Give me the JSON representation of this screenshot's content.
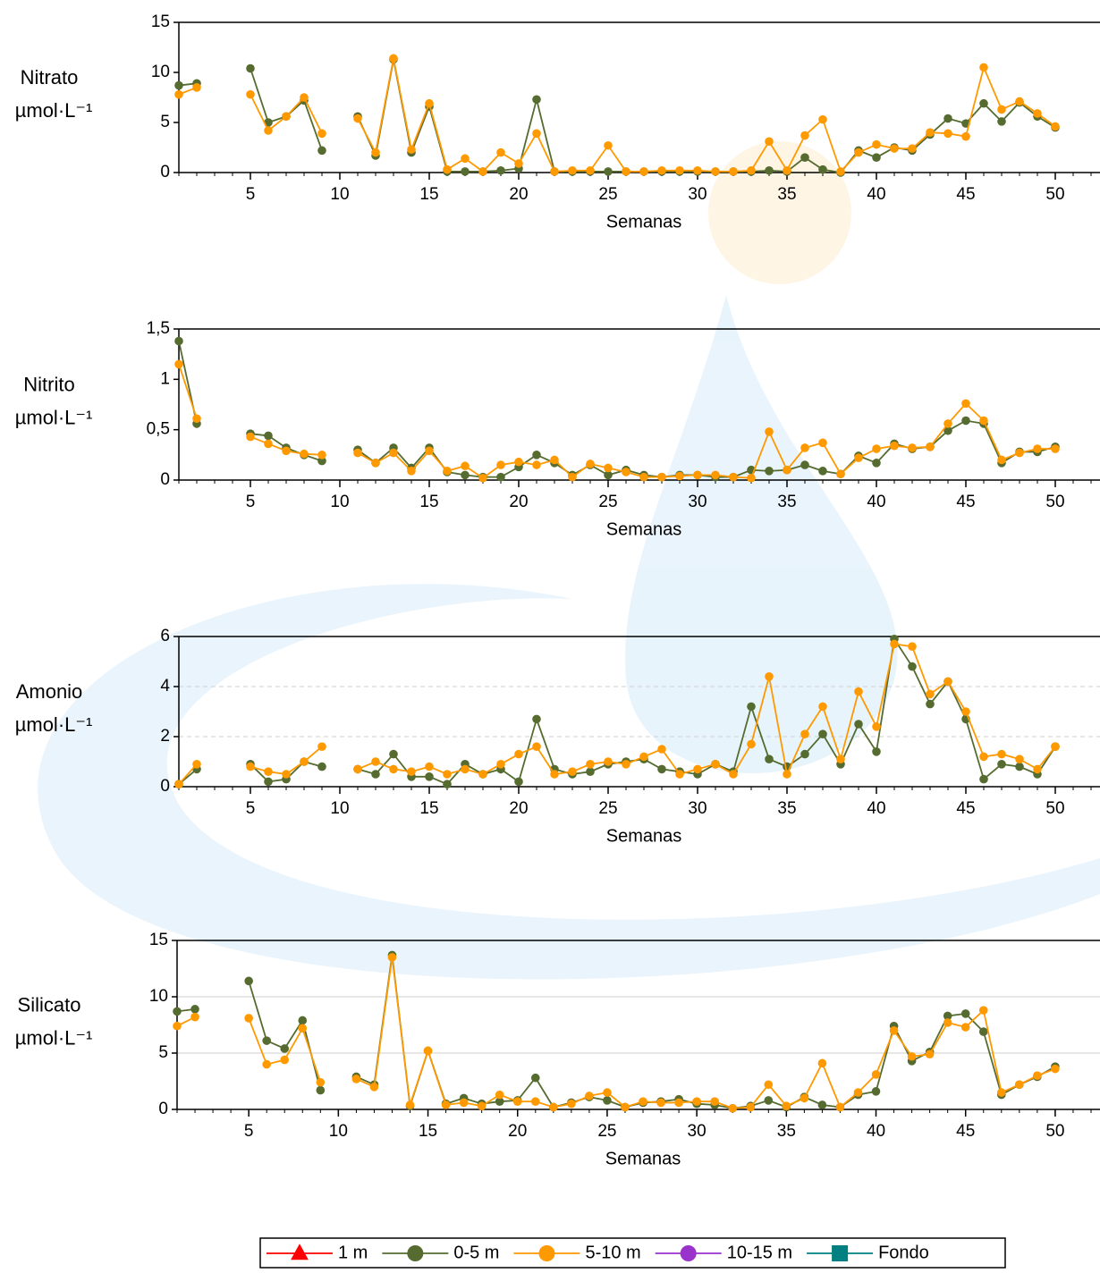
{
  "legend": [
    {
      "name": "1 m",
      "color": "#ff0000",
      "marker": "triangle"
    },
    {
      "name": "0-5 m",
      "color": "#556b2f",
      "marker": "circle"
    },
    {
      "name": "5-10 m",
      "color": "#ff9900",
      "marker": "circle"
    },
    {
      "name": "10-15 m",
      "color": "#9933cc",
      "marker": "circle"
    },
    {
      "name": "Fondo",
      "color": "#008080",
      "marker": "square"
    }
  ],
  "chart_data": [
    {
      "type": "line",
      "ylabel": "Nitrato",
      "unit": "µmol·L⁻¹",
      "xlabel": "Semanas",
      "grid": false,
      "x": [
        1,
        2,
        3,
        4,
        5,
        6,
        7,
        8,
        9,
        10,
        11,
        12,
        13,
        14,
        15,
        16,
        17,
        18,
        19,
        20,
        21,
        22,
        23,
        24,
        25,
        26,
        27,
        28,
        29,
        30,
        31,
        32,
        33,
        34,
        35,
        36,
        37,
        38,
        39,
        40,
        41,
        42,
        43,
        44,
        45,
        46,
        47,
        48,
        49,
        50
      ],
      "xlim": [
        1,
        52.5
      ],
      "xticks": [
        5,
        10,
        15,
        20,
        25,
        30,
        35,
        40,
        45,
        50
      ],
      "ylim": [
        0,
        15
      ],
      "yticks": [
        0,
        5,
        10,
        15
      ],
      "series": [
        {
          "entry": 1,
          "values": [
            8.7,
            8.9,
            null,
            null,
            10.4,
            5.0,
            5.6,
            7.2,
            2.2,
            null,
            5.6,
            1.7,
            11.3,
            2.0,
            6.6,
            0.1,
            0.1,
            0.1,
            0.2,
            0.4,
            7.3,
            0.1,
            0.1,
            0.1,
            0.1,
            0.1,
            0.1,
            0.1,
            0.1,
            0.1,
            0.1,
            0.1,
            0.1,
            0.2,
            0.1,
            1.5,
            0.3,
            0,
            2.2,
            1.5,
            2.5,
            2.2,
            3.8,
            5.4,
            4.9,
            6.9,
            5.1,
            7.0,
            5.6,
            4.5
          ]
        },
        {
          "entry": 2,
          "values": [
            7.8,
            8.5,
            null,
            null,
            7.8,
            4.2,
            5.6,
            7.5,
            3.9,
            null,
            5.4,
            2.0,
            11.4,
            2.3,
            6.9,
            0.3,
            1.4,
            0.1,
            2.0,
            0.9,
            3.9,
            0.1,
            0.2,
            0.2,
            2.7,
            0.1,
            0.1,
            0.2,
            0.2,
            0.2,
            0.1,
            0.1,
            0.2,
            3.1,
            0.2,
            3.7,
            5.3,
            0.1,
            2.0,
            2.8,
            2.4,
            2.4,
            4.0,
            3.9,
            3.6,
            10.5,
            6.3,
            7.1,
            5.9,
            4.6
          ]
        }
      ]
    },
    {
      "type": "line",
      "ylabel": "Nitrito",
      "unit": "µmol·L⁻¹",
      "xlabel": "Semanas",
      "grid": false,
      "x": [
        1,
        2,
        3,
        4,
        5,
        6,
        7,
        8,
        9,
        10,
        11,
        12,
        13,
        14,
        15,
        16,
        17,
        18,
        19,
        20,
        21,
        22,
        23,
        24,
        25,
        26,
        27,
        28,
        29,
        30,
        31,
        32,
        33,
        34,
        35,
        36,
        37,
        38,
        39,
        40,
        41,
        42,
        43,
        44,
        45,
        46,
        47,
        48,
        49,
        50
      ],
      "xlim": [
        1,
        52.5
      ],
      "xticks": [
        5,
        10,
        15,
        20,
        25,
        30,
        35,
        40,
        45,
        50
      ],
      "ylim": [
        0,
        1.5
      ],
      "yticks": [
        0,
        {
          "value": 0.5,
          "label": "0,5"
        },
        1,
        {
          "value": 1.5,
          "label": "1,5"
        }
      ],
      "series": [
        {
          "entry": 1,
          "values": [
            1.38,
            0.56,
            null,
            null,
            0.46,
            0.44,
            0.32,
            0.25,
            0.19,
            null,
            0.3,
            0.17,
            0.32,
            0.12,
            0.32,
            0.08,
            0.05,
            0.03,
            0.03,
            0.13,
            0.25,
            0.17,
            0.05,
            0.15,
            0.05,
            0.1,
            0.05,
            0.03,
            0.05,
            0.05,
            0.03,
            0.03,
            0.1,
            0.09,
            0.1,
            0.15,
            0.09,
            0.06,
            0.24,
            0.17,
            0.36,
            0.31,
            0.33,
            0.49,
            0.59,
            0.56,
            0.17,
            0.28,
            0.28,
            0.33
          ]
        },
        {
          "entry": 2,
          "values": [
            1.15,
            0.61,
            null,
            null,
            0.43,
            0.36,
            0.29,
            0.26,
            0.25,
            null,
            0.27,
            0.17,
            0.27,
            0.09,
            0.29,
            0.09,
            0.14,
            0.02,
            0.15,
            0.18,
            0.15,
            0.2,
            0.03,
            0.16,
            0.12,
            0.08,
            0.03,
            0.03,
            0.04,
            0.05,
            0.05,
            0.03,
            0.02,
            0.48,
            0.1,
            0.32,
            0.37,
            0.06,
            0.22,
            0.31,
            0.34,
            0.32,
            0.33,
            0.56,
            0.76,
            0.59,
            0.2,
            0.27,
            0.31,
            0.31
          ]
        }
      ]
    },
    {
      "type": "line",
      "ylabel": "Amonio",
      "unit": "µmol·L⁻¹",
      "xlabel": "Semanas",
      "grid": true,
      "x": [
        1,
        2,
        3,
        4,
        5,
        6,
        7,
        8,
        9,
        10,
        11,
        12,
        13,
        14,
        15,
        16,
        17,
        18,
        19,
        20,
        21,
        22,
        23,
        24,
        25,
        26,
        27,
        28,
        29,
        30,
        31,
        32,
        33,
        34,
        35,
        36,
        37,
        38,
        39,
        40,
        41,
        42,
        43,
        44,
        45,
        46,
        47,
        48,
        49,
        50
      ],
      "xlim": [
        1,
        52.5
      ],
      "xticks": [
        5,
        10,
        15,
        20,
        25,
        30,
        35,
        40,
        45,
        50
      ],
      "ylim": [
        0,
        6
      ],
      "yticks": [
        0,
        2,
        4,
        6
      ],
      "series": [
        {
          "entry": 1,
          "values": [
            0.1,
            0.7,
            null,
            null,
            0.9,
            0.2,
            0.3,
            1.0,
            0.8,
            null,
            0.7,
            0.5,
            1.3,
            0.4,
            0.4,
            0.1,
            0.9,
            0.5,
            0.7,
            0.2,
            2.7,
            0.7,
            0.5,
            0.6,
            0.9,
            1.0,
            1.1,
            0.7,
            0.6,
            0.5,
            0.9,
            0.6,
            3.2,
            1.1,
            0.8,
            1.3,
            2.1,
            0.9,
            2.5,
            1.4,
            5.9,
            4.8,
            3.3,
            4.2,
            2.7,
            0.3,
            0.9,
            0.8,
            0.5,
            1.6
          ]
        },
        {
          "entry": 2,
          "values": [
            0.1,
            0.9,
            null,
            null,
            0.8,
            0.6,
            0.5,
            1.0,
            1.6,
            null,
            0.7,
            1.0,
            0.7,
            0.6,
            0.8,
            0.5,
            0.7,
            0.5,
            0.9,
            1.3,
            1.6,
            0.5,
            0.6,
            0.9,
            1.0,
            0.9,
            1.2,
            1.5,
            0.5,
            0.7,
            0.9,
            0.5,
            1.7,
            4.4,
            0.5,
            2.1,
            3.2,
            1.1,
            3.8,
            2.4,
            5.7,
            5.6,
            3.7,
            4.2,
            3.0,
            1.2,
            1.3,
            1.1,
            0.7,
            1.6
          ]
        }
      ]
    },
    {
      "type": "line",
      "ylabel": "Silicato",
      "unit": "µmol·L⁻¹",
      "xlabel": "Semanas",
      "grid": true,
      "x": [
        1,
        2,
        3,
        4,
        5,
        6,
        7,
        8,
        9,
        10,
        11,
        12,
        13,
        14,
        15,
        16,
        17,
        18,
        19,
        20,
        21,
        22,
        23,
        24,
        25,
        26,
        27,
        28,
        29,
        30,
        31,
        32,
        33,
        34,
        35,
        36,
        37,
        38,
        39,
        40,
        41,
        42,
        43,
        44,
        45,
        46,
        47,
        48,
        49,
        50
      ],
      "xlim": [
        1,
        52.5
      ],
      "xticks": [
        5,
        10,
        15,
        20,
        25,
        30,
        35,
        40,
        45,
        50
      ],
      "ylim": [
        0,
        15
      ],
      "yticks": [
        0,
        5,
        10,
        15
      ],
      "series": [
        {
          "entry": 1,
          "values": [
            8.7,
            8.9,
            null,
            null,
            11.4,
            6.1,
            5.4,
            7.9,
            1.7,
            null,
            2.9,
            2.2,
            13.7,
            0.3,
            5.2,
            0.5,
            1.0,
            0.5,
            0.7,
            0.8,
            2.8,
            0.2,
            0.6,
            1.1,
            0.8,
            0.2,
            0.6,
            0.7,
            0.9,
            0.5,
            0.4,
            0.1,
            0.3,
            0.8,
            0.2,
            1.1,
            0.4,
            0.2,
            1.3,
            1.6,
            7.4,
            4.3,
            5.1,
            8.3,
            8.5,
            6.9,
            1.3,
            2.2,
            2.9,
            3.8
          ]
        },
        {
          "entry": 2,
          "values": [
            7.4,
            8.2,
            null,
            null,
            8.1,
            4.0,
            4.4,
            7.2,
            2.4,
            null,
            2.7,
            2.0,
            13.5,
            0.4,
            5.2,
            0.4,
            0.6,
            0.3,
            1.3,
            0.7,
            0.7,
            0.2,
            0.5,
            1.2,
            1.5,
            0.2,
            0.7,
            0.6,
            0.6,
            0.7,
            0.7,
            0.1,
            0.2,
            2.2,
            0.3,
            1.0,
            4.1,
            0.2,
            1.5,
            3.1,
            7.0,
            4.7,
            4.9,
            7.7,
            7.3,
            8.8,
            1.5,
            2.2,
            3.0,
            3.6
          ]
        }
      ]
    }
  ]
}
